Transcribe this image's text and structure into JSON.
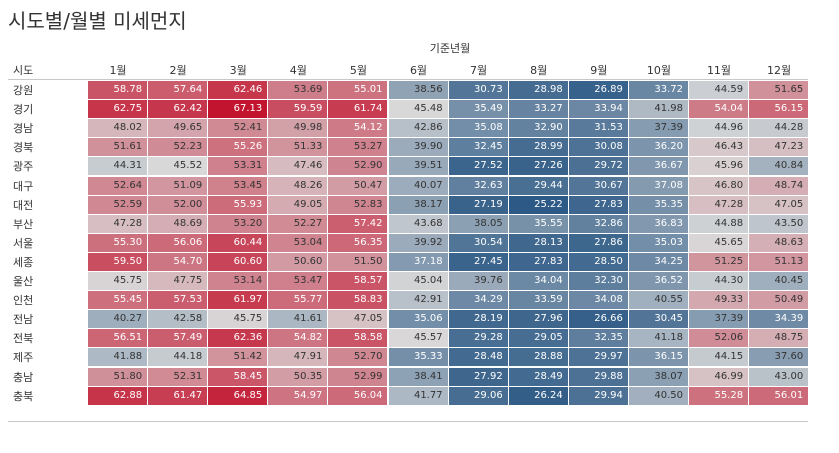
{
  "title": "시도별/월별 미세먼지",
  "chart_data": {
    "type": "heatmap",
    "column_axis_title": "기준년월",
    "row_header": "시도",
    "columns": [
      "1월",
      "2월",
      "3월",
      "4월",
      "5월",
      "6월",
      "7월",
      "8월",
      "9월",
      "10월",
      "11월",
      "12월"
    ],
    "rows": [
      "강원",
      "경기",
      "경남",
      "경북",
      "광주",
      "대구",
      "대전",
      "부산",
      "서울",
      "세종",
      "울산",
      "인천",
      "전남",
      "전북",
      "제주",
      "충남",
      "충북"
    ],
    "values": [
      [
        "58.78",
        "57.64",
        "62.46",
        "53.69",
        "55.01",
        "38.56",
        "30.73",
        "28.98",
        "26.89",
        "33.72",
        "44.59",
        "51.65"
      ],
      [
        "62.75",
        "62.42",
        "67.13",
        "59.59",
        "61.74",
        "45.48",
        "35.49",
        "33.27",
        "33.94",
        "41.98",
        "54.04",
        "56.15"
      ],
      [
        "48.02",
        "49.65",
        "52.41",
        "49.98",
        "54.12",
        "42.86",
        "35.08",
        "32.90",
        "31.53",
        "37.39",
        "44.96",
        "44.28"
      ],
      [
        "51.61",
        "52.23",
        "55.26",
        "51.33",
        "53.27",
        "39.90",
        "32.45",
        "28.99",
        "30.08",
        "36.20",
        "46.43",
        "47.23"
      ],
      [
        "44.31",
        "45.52",
        "53.31",
        "47.46",
        "52.90",
        "39.51",
        "27.52",
        "27.26",
        "29.72",
        "36.67",
        "45.96",
        "40.84"
      ],
      [
        "52.64",
        "51.09",
        "53.45",
        "48.26",
        "50.47",
        "40.07",
        "32.63",
        "29.44",
        "30.67",
        "37.08",
        "46.80",
        "48.74"
      ],
      [
        "52.59",
        "52.00",
        "55.93",
        "49.05",
        "52.83",
        "38.17",
        "27.19",
        "25.22",
        "27.83",
        "35.35",
        "47.28",
        "47.05"
      ],
      [
        "47.28",
        "48.69",
        "53.20",
        "52.27",
        "57.42",
        "43.68",
        "38.05",
        "35.55",
        "32.86",
        "36.83",
        "44.88",
        "43.50"
      ],
      [
        "55.30",
        "56.06",
        "60.44",
        "53.04",
        "56.35",
        "39.92",
        "30.54",
        "28.13",
        "27.86",
        "35.03",
        "45.65",
        "48.63"
      ],
      [
        "59.50",
        "54.70",
        "60.60",
        "50.60",
        "51.50",
        "37.18",
        "27.45",
        "27.83",
        "28.50",
        "34.25",
        "51.25",
        "51.13"
      ],
      [
        "45.75",
        "47.75",
        "53.14",
        "53.47",
        "58.57",
        "45.04",
        "39.76",
        "34.04",
        "32.30",
        "36.52",
        "44.30",
        "40.45"
      ],
      [
        "55.45",
        "57.53",
        "61.97",
        "55.77",
        "58.83",
        "42.91",
        "34.29",
        "33.59",
        "34.08",
        "40.55",
        "49.33",
        "50.49"
      ],
      [
        "40.27",
        "42.58",
        "45.75",
        "41.61",
        "47.05",
        "35.06",
        "28.19",
        "27.96",
        "26.66",
        "30.45",
        "37.39",
        "34.39"
      ],
      [
        "56.51",
        "57.49",
        "62.36",
        "54.82",
        "58.58",
        "45.57",
        "29.28",
        "29.05",
        "32.35",
        "41.18",
        "52.06",
        "48.75"
      ],
      [
        "41.88",
        "44.18",
        "51.42",
        "47.91",
        "52.70",
        "35.33",
        "28.48",
        "28.88",
        "29.97",
        "36.15",
        "44.15",
        "37.60"
      ],
      [
        "51.80",
        "52.31",
        "58.45",
        "50.35",
        "52.99",
        "38.41",
        "27.92",
        "28.49",
        "29.88",
        "38.07",
        "46.99",
        "43.00"
      ],
      [
        "62.88",
        "61.47",
        "64.85",
        "54.97",
        "56.04",
        "41.77",
        "29.06",
        "26.24",
        "29.94",
        "40.50",
        "55.28",
        "56.01"
      ]
    ],
    "color_scale": {
      "low": "#2c5985",
      "mid": "#d9d9d9",
      "high": "#c2142e",
      "mid_value": 45.5,
      "min_value": 25.22,
      "max_value": 67.13
    }
  }
}
